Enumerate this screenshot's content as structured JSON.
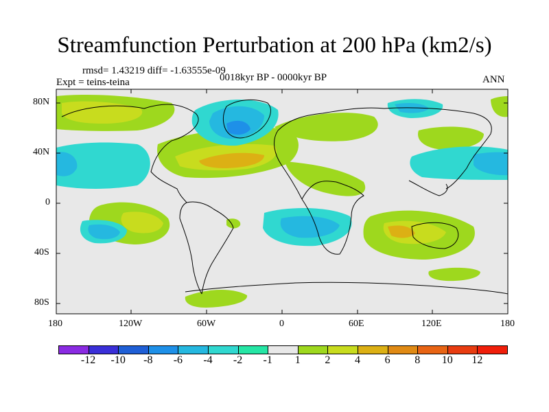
{
  "title": "Streamfunction Perturbation at 200 hPa (km2/s)",
  "stats": "rmsd= 1.43219 diff= -1.63555e-09",
  "experiment": "Expt = teins-teina",
  "period": "0018kyr BP - 0000kyr BP",
  "season": "ANN",
  "lat_ticks": [
    "80N",
    "40N",
    "0",
    "40S",
    "80S"
  ],
  "lon_ticks": [
    "180",
    "120W",
    "60W",
    "0",
    "60E",
    "120E",
    "180"
  ],
  "legend": {
    "labels": [
      "-12",
      "-10",
      "-8",
      "-6",
      "-4",
      "-2",
      "-1",
      "1",
      "2",
      "4",
      "6",
      "8",
      "10",
      "12"
    ],
    "colors": [
      "#8a2be2",
      "#3a2fd8",
      "#1f5fd6",
      "#1e90e8",
      "#25b8e0",
      "#30d8d0",
      "#25e6a5",
      "#e8e8e8",
      "#9ed81e",
      "#c8dc1e",
      "#dcb014",
      "#e08a14",
      "#e86414",
      "#e83c10",
      "#f01e0a"
    ]
  }
}
